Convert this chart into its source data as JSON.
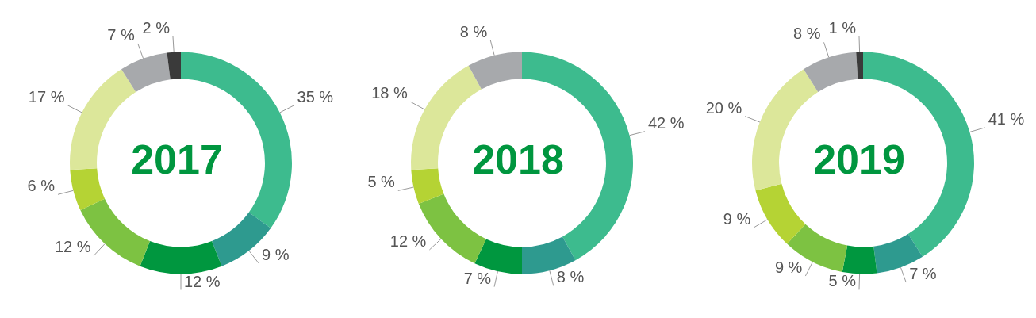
{
  "chart_data": [
    {
      "type": "donut",
      "title": "2017",
      "categories": [
        null,
        null,
        null,
        null,
        null,
        null,
        null,
        null
      ],
      "values": [
        35,
        9,
        12,
        12,
        6,
        17,
        7,
        2
      ],
      "value_labels": [
        "35 %",
        "9 %",
        "12 %",
        "12 %",
        "6 %",
        "17 %",
        "7 %",
        "2 %"
      ],
      "colors": [
        "#3dbb8e",
        "#2e9a8f",
        "#00973f",
        "#7dc242",
        "#b5d334",
        "#dce79a",
        "#a7a9ac",
        "#3a3a3a"
      ]
    },
    {
      "type": "donut",
      "title": "2018",
      "categories": [
        null,
        null,
        null,
        null,
        null,
        null,
        null
      ],
      "values": [
        42,
        8,
        7,
        12,
        5,
        18,
        8
      ],
      "value_labels": [
        "42 %",
        "8 %",
        "7 %",
        "12 %",
        "5 %",
        "18 %",
        "8 %"
      ],
      "colors": [
        "#3dbb8e",
        "#2e9a8f",
        "#00973f",
        "#7dc242",
        "#b5d334",
        "#dce79a",
        "#a7a9ac"
      ]
    },
    {
      "type": "donut",
      "title": "2019",
      "categories": [
        null,
        null,
        null,
        null,
        null,
        null,
        null,
        null
      ],
      "values": [
        41,
        7,
        5,
        9,
        9,
        20,
        8,
        1
      ],
      "value_labels": [
        "41 %",
        "7 %",
        "5 %",
        "9 %",
        "9 %",
        "20 %",
        "8 %",
        "1 %"
      ],
      "colors": [
        "#3dbb8e",
        "#2e9a8f",
        "#00973f",
        "#7dc242",
        "#b5d334",
        "#dce79a",
        "#a7a9ac",
        "#3a3a3a"
      ]
    }
  ]
}
